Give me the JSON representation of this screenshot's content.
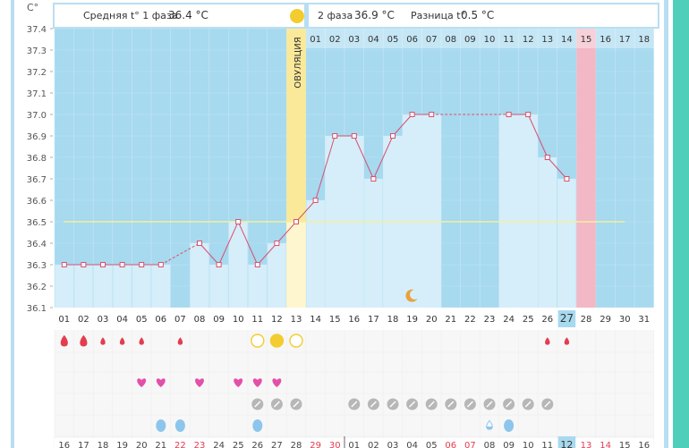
{
  "header": {
    "phase1_label": "Средняя t° 1 фаза",
    "phase1_value": "36.4 °C",
    "phase2_label": "2 фаза",
    "phase2_value": "36.9 °C",
    "diff_label": "Разница t°",
    "diff_value": "0.5 °C"
  },
  "ovulation_label": "ОВУЛЯЦИЯ",
  "highlight_day_badge": "27",
  "highlight_date_badge": "12",
  "colors": {
    "sky": "#a7d9ef",
    "light_bar": "#d5eefa",
    "ovulation": "#fbe99a",
    "pink_col": "#f2b8c6",
    "line": "#d9506f",
    "coverline": "#f3ef9d",
    "period": "#e33d50",
    "heart": "#e44fa9",
    "drop": "#8dc6ec",
    "pill": "#b7b7b7",
    "sun": "#f3cc30",
    "moon": "#e9a23f"
  },
  "chart_data": {
    "type": "line",
    "y_unit": "C°",
    "ylim": [
      36.1,
      37.4
    ],
    "y_ticks": [
      "37.4",
      "37.3",
      "37.2",
      "37.1",
      "37.0",
      "36.9",
      "36.8",
      "36.7",
      "36.6",
      "36.5",
      "36.4",
      "36.3",
      "36.2",
      "36.1"
    ],
    "cycle_days": [
      "01",
      "02",
      "03",
      "04",
      "05",
      "06",
      "07",
      "08",
      "09",
      "10",
      "11",
      "12",
      "13",
      "14",
      "15",
      "16",
      "17",
      "18",
      "19",
      "20",
      "21",
      "22",
      "23",
      "24",
      "25",
      "26",
      "27",
      "28",
      "29",
      "30",
      "31"
    ],
    "phase2_days": [
      "01",
      "02",
      "03",
      "04",
      "05",
      "06",
      "07",
      "08",
      "09",
      "10",
      "11",
      "12",
      "13",
      "14",
      "15",
      "16",
      "17",
      "18"
    ],
    "dates": [
      "16",
      "17",
      "18",
      "19",
      "20",
      "21",
      "22",
      "23",
      "24",
      "25",
      "26",
      "27",
      "28",
      "29",
      "30",
      "01",
      "02",
      "03",
      "04",
      "05",
      "06",
      "07",
      "08",
      "09",
      "10",
      "11",
      "12",
      "13",
      "14",
      "15",
      "16"
    ],
    "red_date_indices": [
      6,
      7,
      13,
      14,
      20,
      21,
      27,
      28
    ],
    "temperatures": [
      36.3,
      36.3,
      36.3,
      36.3,
      36.3,
      36.3,
      null,
      36.4,
      36.3,
      36.5,
      36.3,
      36.4,
      36.5,
      36.6,
      36.9,
      36.9,
      36.7,
      36.9,
      37.0,
      37.0,
      null,
      null,
      null,
      37.0,
      37.0,
      36.8,
      36.7,
      null,
      null,
      null,
      null
    ],
    "coverline": 36.5,
    "ovulation_day_index": 12,
    "pink_day_index": 27,
    "highlight_day_index": 26,
    "dark_columns": [
      6,
      21,
      22,
      23
    ],
    "period_drops": [
      {
        "day": 0,
        "size": "large"
      },
      {
        "day": 1,
        "size": "large"
      },
      {
        "day": 2,
        "size": "small"
      },
      {
        "day": 3,
        "size": "small"
      },
      {
        "day": 4,
        "size": "small"
      },
      {
        "day": 6,
        "size": "small"
      },
      {
        "day": 25,
        "size": "small"
      },
      {
        "day": 26,
        "size": "small"
      }
    ],
    "sun_circles": [
      {
        "day": 10,
        "filled": false
      },
      {
        "day": 11,
        "filled": true
      },
      {
        "day": 12,
        "filled": false
      }
    ],
    "hearts": [
      4,
      5,
      7,
      9,
      10,
      11
    ],
    "pills": [
      10,
      11,
      12,
      15,
      16,
      17,
      18,
      19,
      20,
      21,
      22,
      23,
      24,
      25
    ],
    "blue_drops": [
      {
        "day": 5,
        "variant": "full"
      },
      {
        "day": 6,
        "variant": "full"
      },
      {
        "day": 10,
        "variant": "full"
      },
      {
        "day": 22,
        "variant": "partial"
      },
      {
        "day": 23,
        "variant": "full"
      }
    ],
    "moon_day_index": 18
  }
}
